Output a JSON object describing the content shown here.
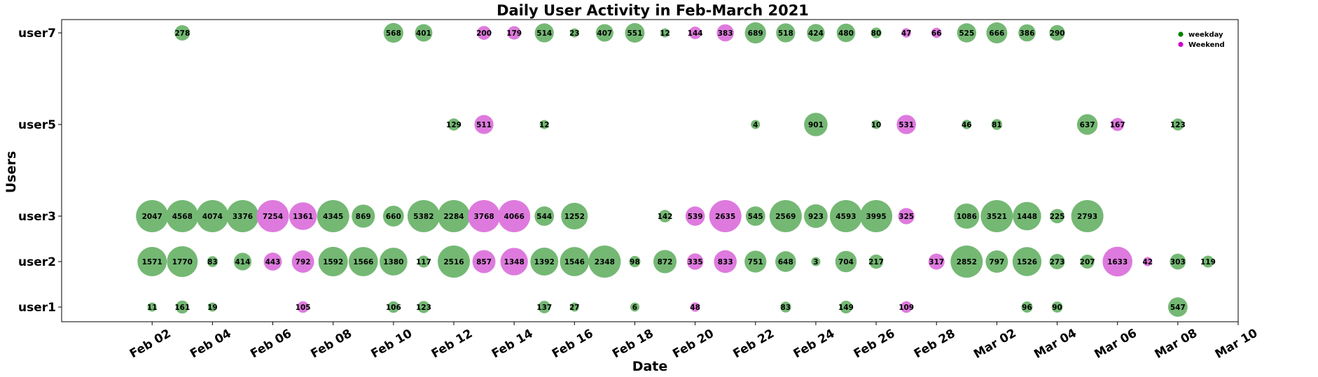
{
  "chart_data": {
    "type": "scatter",
    "title": "Daily User Activity in Feb-March 2021",
    "xlabel": "Date",
    "ylabel": "Users",
    "x_ticks": [
      "Feb 02",
      "Feb 04",
      "Feb 06",
      "Feb 08",
      "Feb 10",
      "Feb 12",
      "Feb 14",
      "Feb 16",
      "Feb 18",
      "Feb 20",
      "Feb 22",
      "Feb 24",
      "Feb 26",
      "Feb 28",
      "Mar 02",
      "Mar 04",
      "Mar 06",
      "Mar 08",
      "Mar 10"
    ],
    "x_range": [
      "2021-01-30",
      "2021-03-10"
    ],
    "users": [
      "user1",
      "user2",
      "user3",
      "user5",
      "user7"
    ],
    "legend": {
      "position": "top-right",
      "entries": [
        {
          "label": "weekday",
          "color": "#008000"
        },
        {
          "label": "Weekend",
          "color": "#cc00cc"
        }
      ]
    },
    "colors": {
      "weekday": "#74b874",
      "weekend": "#de7ade"
    },
    "grid": false,
    "series": [
      {
        "user": "user7",
        "points": [
          [
            "2021-02-03",
            278,
            "weekday"
          ],
          [
            "2021-02-10",
            568,
            "weekday"
          ],
          [
            "2021-02-11",
            401,
            "weekday"
          ],
          [
            "2021-02-13",
            200,
            "weekend"
          ],
          [
            "2021-02-14",
            179,
            "weekend"
          ],
          [
            "2021-02-15",
            514,
            "weekday"
          ],
          [
            "2021-02-16",
            23,
            "weekday"
          ],
          [
            "2021-02-17",
            407,
            "weekday"
          ],
          [
            "2021-02-18",
            551,
            "weekday"
          ],
          [
            "2021-02-19",
            12,
            "weekday"
          ],
          [
            "2021-02-20",
            144,
            "weekend"
          ],
          [
            "2021-02-21",
            383,
            "weekend"
          ],
          [
            "2021-02-22",
            689,
            "weekday"
          ],
          [
            "2021-02-23",
            518,
            "weekday"
          ],
          [
            "2021-02-24",
            424,
            "weekday"
          ],
          [
            "2021-02-25",
            480,
            "weekday"
          ],
          [
            "2021-02-26",
            80,
            "weekday"
          ],
          [
            "2021-02-27",
            47,
            "weekend"
          ],
          [
            "2021-02-28",
            66,
            "weekend"
          ],
          [
            "2021-03-01",
            525,
            "weekday"
          ],
          [
            "2021-03-02",
            666,
            "weekday"
          ],
          [
            "2021-03-03",
            386,
            "weekday"
          ],
          [
            "2021-03-04",
            290,
            "weekday"
          ]
        ]
      },
      {
        "user": "user5",
        "points": [
          [
            "2021-02-12",
            129,
            "weekday"
          ],
          [
            "2021-02-13",
            511,
            "weekend"
          ],
          [
            "2021-02-15",
            12,
            "weekday"
          ],
          [
            "2021-02-22",
            4,
            "weekday"
          ],
          [
            "2021-02-24",
            901,
            "weekday"
          ],
          [
            "2021-02-26",
            10,
            "weekday"
          ],
          [
            "2021-02-27",
            531,
            "weekend"
          ],
          [
            "2021-03-01",
            46,
            "weekday"
          ],
          [
            "2021-03-02",
            81,
            "weekday"
          ],
          [
            "2021-03-05",
            637,
            "weekday"
          ],
          [
            "2021-03-06",
            167,
            "weekend"
          ],
          [
            "2021-03-08",
            123,
            "weekday"
          ]
        ]
      },
      {
        "user": "user3",
        "points": [
          [
            "2021-02-02",
            2047,
            "weekday"
          ],
          [
            "2021-02-03",
            4568,
            "weekday"
          ],
          [
            "2021-02-04",
            4074,
            "weekday"
          ],
          [
            "2021-02-05",
            3376,
            "weekday"
          ],
          [
            "2021-02-06",
            7254,
            "weekend"
          ],
          [
            "2021-02-07",
            1361,
            "weekend"
          ],
          [
            "2021-02-08",
            4345,
            "weekday"
          ],
          [
            "2021-02-09",
            869,
            "weekday"
          ],
          [
            "2021-02-10",
            660,
            "weekday"
          ],
          [
            "2021-02-11",
            5382,
            "weekday"
          ],
          [
            "2021-02-12",
            2284,
            "weekday"
          ],
          [
            "2021-02-13",
            3768,
            "weekend"
          ],
          [
            "2021-02-14",
            4066,
            "weekend"
          ],
          [
            "2021-02-15",
            544,
            "weekday"
          ],
          [
            "2021-02-16",
            1252,
            "weekday"
          ],
          [
            "2021-02-19",
            142,
            "weekday"
          ],
          [
            "2021-02-20",
            539,
            "weekend"
          ],
          [
            "2021-02-21",
            2635,
            "weekend"
          ],
          [
            "2021-02-22",
            545,
            "weekday"
          ],
          [
            "2021-02-23",
            2569,
            "weekday"
          ],
          [
            "2021-02-24",
            923,
            "weekday"
          ],
          [
            "2021-02-25",
            4593,
            "weekday"
          ],
          [
            "2021-02-26",
            3995,
            "weekday"
          ],
          [
            "2021-02-27",
            325,
            "weekend"
          ],
          [
            "2021-03-01",
            1086,
            "weekday"
          ],
          [
            "2021-03-02",
            3521,
            "weekday"
          ],
          [
            "2021-03-03",
            1448,
            "weekday"
          ],
          [
            "2021-03-04",
            225,
            "weekday"
          ],
          [
            "2021-03-05",
            2793,
            "weekday"
          ]
        ]
      },
      {
        "user": "user2",
        "points": [
          [
            "2021-02-02",
            1571,
            "weekday"
          ],
          [
            "2021-02-03",
            1770,
            "weekday"
          ],
          [
            "2021-02-04",
            83,
            "weekday"
          ],
          [
            "2021-02-05",
            414,
            "weekday"
          ],
          [
            "2021-02-06",
            443,
            "weekend"
          ],
          [
            "2021-02-07",
            792,
            "weekend"
          ],
          [
            "2021-02-08",
            1592,
            "weekday"
          ],
          [
            "2021-02-09",
            1566,
            "weekday"
          ],
          [
            "2021-02-10",
            1380,
            "weekday"
          ],
          [
            "2021-02-11",
            117,
            "weekday"
          ],
          [
            "2021-02-12",
            2516,
            "weekday"
          ],
          [
            "2021-02-13",
            857,
            "weekend"
          ],
          [
            "2021-02-14",
            1348,
            "weekend"
          ],
          [
            "2021-02-15",
            1392,
            "weekday"
          ],
          [
            "2021-02-16",
            1546,
            "weekday"
          ],
          [
            "2021-02-17",
            2348,
            "weekday"
          ],
          [
            "2021-02-18",
            98,
            "weekday"
          ],
          [
            "2021-02-19",
            872,
            "weekday"
          ],
          [
            "2021-02-20",
            335,
            "weekend"
          ],
          [
            "2021-02-21",
            833,
            "weekend"
          ],
          [
            "2021-02-22",
            751,
            "weekday"
          ],
          [
            "2021-02-23",
            648,
            "weekday"
          ],
          [
            "2021-02-24",
            3,
            "weekday"
          ],
          [
            "2021-02-25",
            704,
            "weekday"
          ],
          [
            "2021-02-26",
            217,
            "weekday"
          ],
          [
            "2021-02-28",
            317,
            "weekend"
          ],
          [
            "2021-03-01",
            2852,
            "weekday"
          ],
          [
            "2021-03-02",
            797,
            "weekday"
          ],
          [
            "2021-03-03",
            1526,
            "weekday"
          ],
          [
            "2021-03-04",
            273,
            "weekday"
          ],
          [
            "2021-03-05",
            207,
            "weekday"
          ],
          [
            "2021-03-06",
            1633,
            "weekend"
          ],
          [
            "2021-03-07",
            42,
            "weekend"
          ],
          [
            "2021-03-08",
            303,
            "weekday"
          ],
          [
            "2021-03-09",
            119,
            "weekday"
          ]
        ]
      },
      {
        "user": "user1",
        "points": [
          [
            "2021-02-02",
            11,
            "weekday"
          ],
          [
            "2021-02-03",
            161,
            "weekday"
          ],
          [
            "2021-02-04",
            19,
            "weekday"
          ],
          [
            "2021-02-07",
            105,
            "weekend"
          ],
          [
            "2021-02-10",
            106,
            "weekday"
          ],
          [
            "2021-02-11",
            123,
            "weekday"
          ],
          [
            "2021-02-15",
            137,
            "weekday"
          ],
          [
            "2021-02-16",
            27,
            "weekday"
          ],
          [
            "2021-02-18",
            6,
            "weekday"
          ],
          [
            "2021-02-20",
            48,
            "weekend"
          ],
          [
            "2021-02-23",
            83,
            "weekday"
          ],
          [
            "2021-02-25",
            149,
            "weekday"
          ],
          [
            "2021-02-27",
            109,
            "weekend"
          ],
          [
            "2021-03-03",
            96,
            "weekday"
          ],
          [
            "2021-03-04",
            90,
            "weekday"
          ],
          [
            "2021-03-08",
            547,
            "weekday"
          ]
        ]
      }
    ]
  }
}
